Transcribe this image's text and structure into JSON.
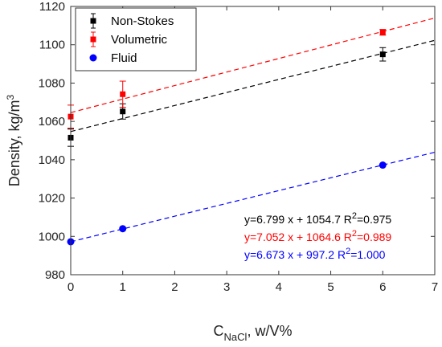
{
  "chart_data": {
    "type": "scatter",
    "xlabel_main": "C",
    "xlabel_sub": "NaCl",
    "xlabel_rest": ", w/V%",
    "ylabel_main": "Density, kg/m",
    "ylabel_sup": "3",
    "xlim": [
      0,
      7
    ],
    "ylim": [
      980,
      1120
    ],
    "xticks": [
      0,
      1,
      2,
      3,
      4,
      5,
      6,
      7
    ],
    "yticks": [
      980,
      1000,
      1020,
      1040,
      1060,
      1080,
      1100,
      1120
    ],
    "grid": false,
    "legend_position": "top-left",
    "series": [
      {
        "name": "Non-Stokes",
        "color": "#000000",
        "marker": "square",
        "x": [
          0,
          1,
          6
        ],
        "y": [
          1051.5,
          1065.2,
          1095.0
        ],
        "err": [
          4.5,
          4.0,
          3.5
        ],
        "fit": {
          "slope": 6.799,
          "intercept": 1054.7
        }
      },
      {
        "name": "Volumetric",
        "color": "#ff0000",
        "marker": "square",
        "x": [
          0,
          1,
          6
        ],
        "y": [
          1062.5,
          1074.2,
          1106.5
        ],
        "err": [
          6.0,
          6.8,
          1.5
        ],
        "fit": {
          "slope": 7.052,
          "intercept": 1064.6
        }
      },
      {
        "name": "Fluid",
        "color": "#0000ff",
        "marker": "circle",
        "x": [
          0,
          1,
          6
        ],
        "y": [
          997.2,
          1004.0,
          1037.2
        ],
        "err": null,
        "fit": {
          "slope": 6.673,
          "intercept": 997.2
        }
      }
    ],
    "annotations": [
      {
        "pre": "y=6.799 x + 1054.7 R",
        "sup": "2",
        "post": "=0.975",
        "color": "#000000"
      },
      {
        "pre": "y=7.052 x + 1064.6 R",
        "sup": "2",
        "post": "=0.989",
        "color": "#ff0000"
      },
      {
        "pre": "y=6.673 x +  997.2  R",
        "sup": "2",
        "post": "=1.000",
        "color": "#0000ff"
      }
    ]
  }
}
